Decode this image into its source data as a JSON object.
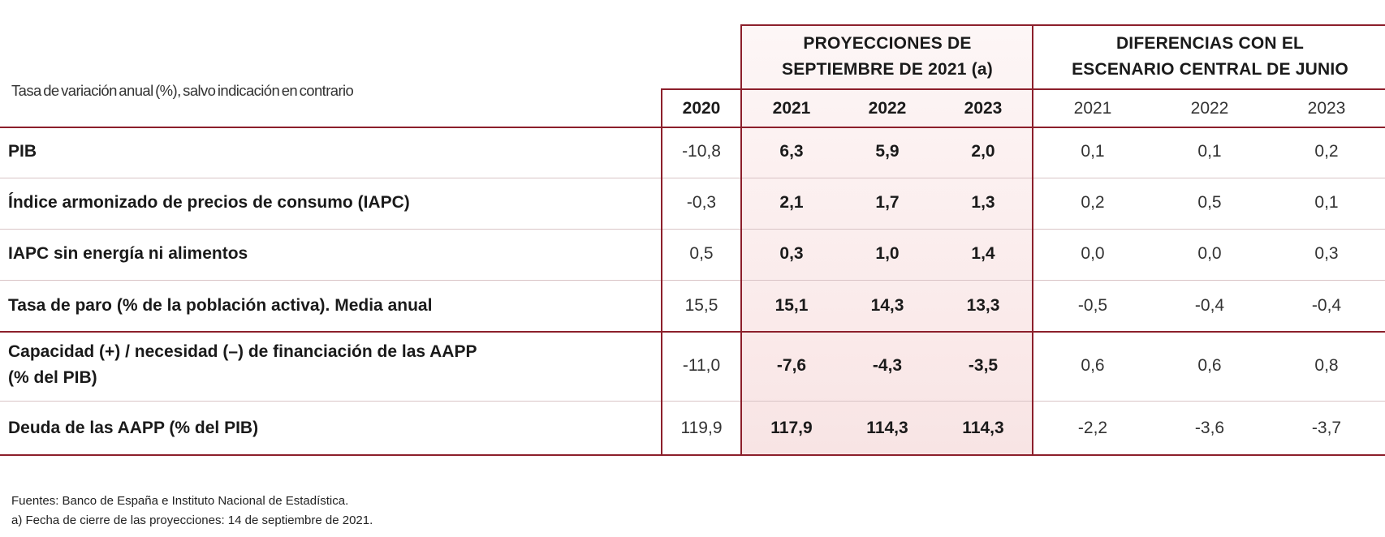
{
  "subtitle": "Tasa de variación anual (%), salvo indicación en contrario",
  "group_headers": {
    "projections": [
      "PROYECCIONES DE",
      "SEPTIEMBRE DE 2021 (a)"
    ],
    "differences": [
      "DIFERENCIAS CON EL",
      "ESCENARIO CENTRAL DE JUNIO"
    ]
  },
  "years": {
    "base": "2020",
    "projections": [
      "2021",
      "2022",
      "2023"
    ],
    "differences": [
      "2021",
      "2022",
      "2023"
    ]
  },
  "rows": [
    {
      "label": [
        "PIB"
      ],
      "base": "-10,8",
      "proj": [
        "6,3",
        "5,9",
        "2,0"
      ],
      "diff": [
        "0,1",
        "0,1",
        "0,2"
      ]
    },
    {
      "label": [
        "Índice armonizado de precios de consumo (IAPC)"
      ],
      "base": "-0,3",
      "proj": [
        "2,1",
        "1,7",
        "1,3"
      ],
      "diff": [
        "0,2",
        "0,5",
        "0,1"
      ]
    },
    {
      "label": [
        "IAPC sin energía ni alimentos"
      ],
      "base": "0,5",
      "proj": [
        "0,3",
        "1,0",
        "1,4"
      ],
      "diff": [
        "0,0",
        "0,0",
        "0,3"
      ]
    },
    {
      "label": [
        "Tasa de paro (% de la población activa). Media anual"
      ],
      "base": "15,5",
      "proj": [
        "15,1",
        "14,3",
        "13,3"
      ],
      "diff": [
        "-0,5",
        "-0,4",
        "-0,4"
      ]
    },
    {
      "label": [
        "Capacidad (+) / necesidad (–) de financiación de las AAPP",
        "(% del PIB)"
      ],
      "base": "-11,0",
      "proj": [
        "-7,6",
        "-4,3",
        "-3,5"
      ],
      "diff": [
        "0,6",
        "0,6",
        "0,8"
      ]
    },
    {
      "label": [
        "Deuda de las AAPP (% del PIB)"
      ],
      "base": "119,9",
      "proj": [
        "117,9",
        "114,3",
        "114,3"
      ],
      "diff": [
        "-2,2",
        "-3,6",
        "-3,7"
      ]
    }
  ],
  "notes": [
    "Fuentes: Banco de España e Instituto Nacional de Estadística.",
    "a) Fecha de cierre de las proyecciones: 14 de septiembre de 2021."
  ],
  "colors": {
    "rule": "#8c1f2b",
    "projection_shade": "#faeaea"
  }
}
